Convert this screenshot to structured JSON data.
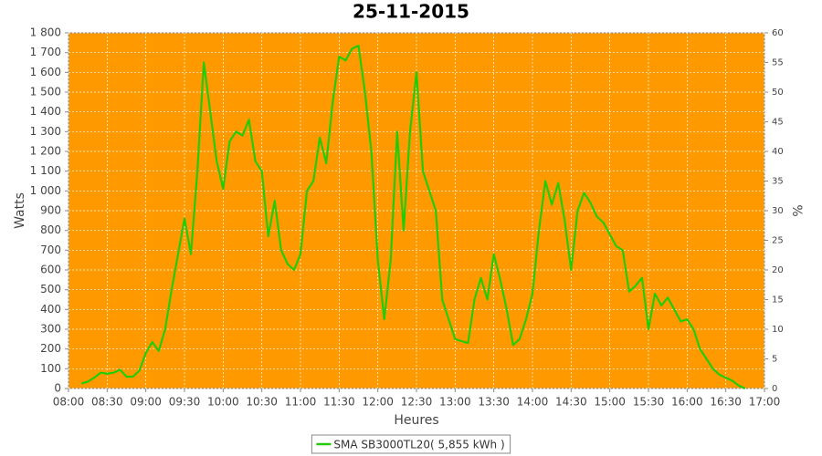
{
  "chart_data": {
    "type": "line",
    "title": "25-11-2015",
    "xlabel": "Heures",
    "ylabel": "Watts",
    "y2label": "%",
    "x": [
      "08:10",
      "08:15",
      "08:20",
      "08:25",
      "08:30",
      "08:35",
      "08:40",
      "08:45",
      "08:50",
      "08:55",
      "09:00",
      "09:05",
      "09:10",
      "09:15",
      "09:20",
      "09:25",
      "09:30",
      "09:35",
      "09:40",
      "09:45",
      "09:50",
      "09:55",
      "10:00",
      "10:05",
      "10:10",
      "10:15",
      "10:20",
      "10:25",
      "10:30",
      "10:35",
      "10:40",
      "10:45",
      "10:50",
      "10:55",
      "11:00",
      "11:05",
      "11:10",
      "11:15",
      "11:20",
      "11:25",
      "11:30",
      "11:35",
      "11:40",
      "11:45",
      "11:50",
      "11:55",
      "12:00",
      "12:05",
      "12:10",
      "12:15",
      "12:20",
      "12:25",
      "12:30",
      "12:35",
      "12:40",
      "12:45",
      "12:50",
      "12:55",
      "13:00",
      "13:05",
      "13:10",
      "13:15",
      "13:20",
      "13:25",
      "13:30",
      "13:35",
      "13:40",
      "13:45",
      "13:50",
      "13:55",
      "14:00",
      "14:05",
      "14:10",
      "14:15",
      "14:20",
      "14:25",
      "14:30",
      "14:35",
      "14:40",
      "14:45",
      "14:50",
      "14:55",
      "15:00",
      "15:05",
      "15:10",
      "15:15",
      "15:20",
      "15:25",
      "15:30",
      "15:35",
      "15:40",
      "15:45",
      "15:50",
      "15:55",
      "16:00",
      "16:05",
      "16:10",
      "16:15",
      "16:20",
      "16:25",
      "16:30",
      "16:35",
      "16:40",
      "16:45"
    ],
    "series": [
      {
        "name": "SMA SB3000TL20( 5,855 kWh )",
        "color": "#22cc00",
        "values": [
          25,
          35,
          55,
          80,
          75,
          80,
          95,
          60,
          60,
          90,
          180,
          235,
          190,
          300,
          500,
          680,
          860,
          680,
          1100,
          1650,
          1400,
          1150,
          1010,
          1250,
          1300,
          1280,
          1360,
          1150,
          1100,
          770,
          950,
          700,
          630,
          600,
          680,
          1000,
          1050,
          1270,
          1140,
          1450,
          1680,
          1660,
          1720,
          1735,
          1500,
          1200,
          650,
          350,
          650,
          1300,
          800,
          1300,
          1600,
          1100,
          1000,
          900,
          450,
          350,
          250,
          240,
          230,
          450,
          560,
          450,
          680,
          550,
          400,
          220,
          250,
          350,
          480,
          800,
          1050,
          930,
          1040,
          850,
          600,
          900,
          990,
          940,
          870,
          840,
          780,
          720,
          700,
          490,
          520,
          560,
          300,
          480,
          420,
          460,
          400,
          340,
          350,
          300,
          200,
          150,
          100,
          70,
          55,
          40,
          15,
          0
        ]
      }
    ],
    "xlim": [
      "08:00",
      "17:00"
    ],
    "xticks": [
      "08:00",
      "08:30",
      "09:00",
      "09:30",
      "10:00",
      "10:30",
      "11:00",
      "11:30",
      "12:00",
      "12:30",
      "13:00",
      "13:30",
      "14:00",
      "14:30",
      "15:00",
      "15:30",
      "16:00",
      "16:30",
      "17:00"
    ],
    "ylim": [
      0,
      1800
    ],
    "yticks": [
      0,
      100,
      200,
      300,
      400,
      500,
      600,
      700,
      800,
      900,
      {
        "value": 1000,
        "label": "1 000"
      },
      {
        "value": 1100,
        "label": "1 100"
      },
      {
        "value": 1200,
        "label": "1 200"
      },
      {
        "value": 1300,
        "label": "1 300"
      },
      {
        "value": 1400,
        "label": "1 400"
      },
      {
        "value": 1500,
        "label": "1 500"
      },
      {
        "value": 1600,
        "label": "1 600"
      },
      {
        "value": 1700,
        "label": "1 700"
      },
      {
        "value": 1800,
        "label": "1 800"
      }
    ],
    "y2lim": [
      0,
      60
    ],
    "y2ticks": [
      0,
      5,
      10,
      15,
      20,
      25,
      30,
      35,
      40,
      45,
      50,
      55,
      60
    ],
    "grid": true,
    "background": "#ff9900",
    "legend": "bottom"
  }
}
